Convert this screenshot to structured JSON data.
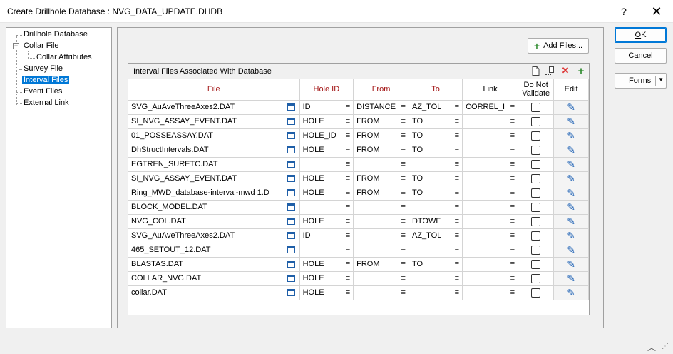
{
  "window": {
    "title": "Create Drillhole Database : NVG_DATA_UPDATE.DHDB",
    "help_glyph": "?",
    "close_glyph": "✕"
  },
  "tree": {
    "items": [
      {
        "label": "Drillhole Database"
      },
      {
        "label": "Collar File"
      },
      {
        "label": "Collar Attributes"
      },
      {
        "label": "Survey File"
      },
      {
        "label": "Interval Files",
        "selected": true
      },
      {
        "label": "Event Files"
      },
      {
        "label": "External Link"
      }
    ],
    "expander_glyph": "−"
  },
  "toolbar": {
    "add_files_prefix": "",
    "add_files_mnemonic": "A",
    "add_files_rest": "dd Files..."
  },
  "grid": {
    "title": "Interval Files Associated With Database",
    "icons": [
      "new-file-icon",
      "import-icon",
      "delete-icon",
      "add-icon"
    ],
    "columns": {
      "file": "File",
      "hole_id": "Hole ID",
      "from": "From",
      "to": "To",
      "link": "Link",
      "validate_line1": "Do Not",
      "validate_line2": "Validate",
      "edit": "Edit"
    },
    "rows": [
      {
        "file": "SVG_AuAveThreeAxes2.DAT",
        "hole": "ID",
        "from": "DISTANCE",
        "to": "AZ_TOL",
        "link": "CORREL_I"
      },
      {
        "file": "SI_NVG_ASSAY_EVENT.DAT",
        "hole": "HOLE",
        "from": "FROM",
        "to": "TO",
        "link": ""
      },
      {
        "file": "01_POSSEASSAY.DAT",
        "hole": "HOLE_ID",
        "from": "FROM",
        "to": "TO",
        "link": ""
      },
      {
        "file": "DhStructIntervals.DAT",
        "hole": "HOLE",
        "from": "FROM",
        "to": "TO",
        "link": ""
      },
      {
        "file": "EGTREN_SURETC.DAT",
        "hole": "",
        "from": "",
        "to": "",
        "link": ""
      },
      {
        "file": "SI_NVG_ASSAY_EVENT.DAT",
        "hole": "HOLE",
        "from": "FROM",
        "to": "TO",
        "link": ""
      },
      {
        "file": "Ring_MWD_database-interval-mwd 1.D",
        "hole": "HOLE",
        "from": "FROM",
        "to": "TO",
        "link": ""
      },
      {
        "file": "BLOCK_MODEL.DAT",
        "hole": "",
        "from": "",
        "to": "",
        "link": ""
      },
      {
        "file": "NVG_COL.DAT",
        "hole": "HOLE",
        "from": "",
        "to": "DTOWF",
        "link": ""
      },
      {
        "file": "SVG_AuAveThreeAxes2.DAT",
        "hole": "ID",
        "from": "",
        "to": "AZ_TOL",
        "link": ""
      },
      {
        "file": "465_SETOUT_12.DAT",
        "hole": "",
        "from": "",
        "to": "",
        "link": ""
      },
      {
        "file": "BLASTAS.DAT",
        "hole": "HOLE",
        "from": "FROM",
        "to": "TO",
        "link": ""
      },
      {
        "file": "COLLAR_NVG.DAT",
        "hole": "HOLE",
        "from": "",
        "to": "",
        "link": ""
      },
      {
        "file": "collar.DAT",
        "hole": "HOLE",
        "from": "",
        "to": "",
        "link": ""
      }
    ]
  },
  "buttons": {
    "ok_mnemonic": "O",
    "ok_rest": "K",
    "cancel_mnemonic": "C",
    "cancel_rest": "ancel",
    "forms_mnemonic": "F",
    "forms_rest": "orms",
    "forms_arrow": "▼"
  },
  "colors": {
    "accent": "#0078d7",
    "required_header": "#a31515",
    "edit_pencil": "#1a5fb4",
    "add_green": "#2e8b2e",
    "delete_red": "#d33"
  }
}
